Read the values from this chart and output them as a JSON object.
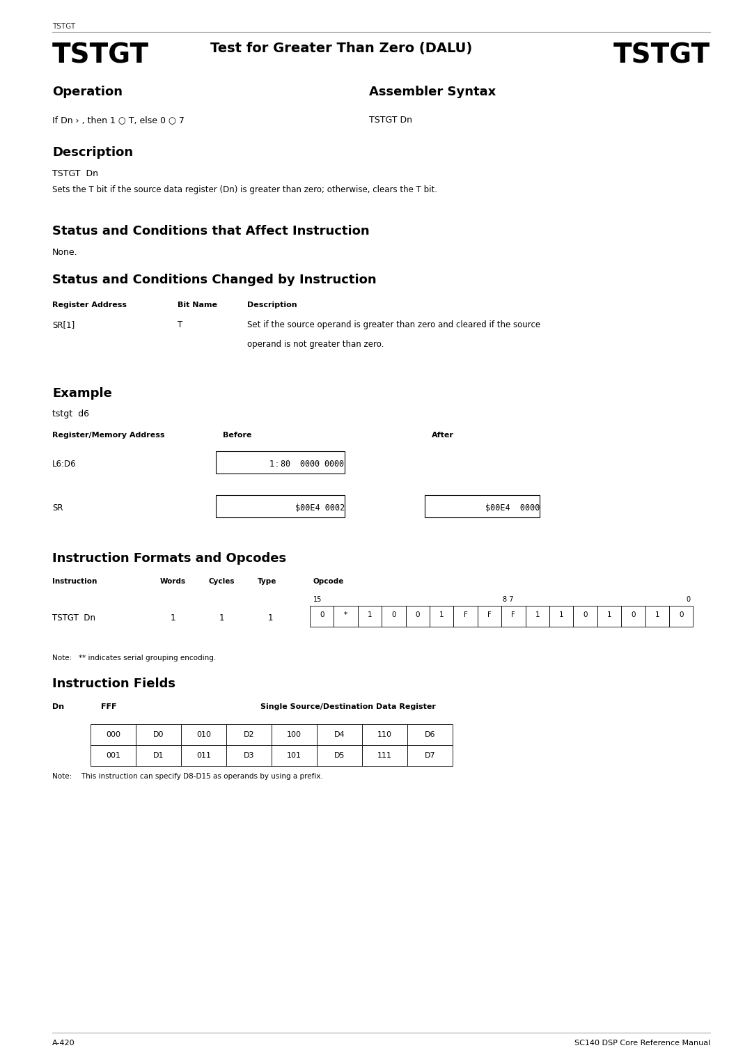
{
  "page_header": "TSTGT",
  "title_left": "TSTGT",
  "title_center": "Test for Greater Than Zero (DALU)",
  "title_right": "TSTGT",
  "section_operation": "Operation",
  "section_assembler": "Assembler Syntax",
  "operation_text": "If Dn › , then 1 ○ T, else 0 ○ 7",
  "assembler_text": "TSTGT Dn",
  "section_description": "Description",
  "desc_syntax": "TSTGT  Dn",
  "desc_body": "Sets the T bit if the source data register (Dn) is greater than zero; otherwise, clears the T bit.",
  "section_status_affect": "Status and Conditions that Affect Instruction",
  "status_affect_text": "None.",
  "section_status_changed": "Status and Conditions Changed by Instruction",
  "table_headers": [
    "Register Address",
    "Bit Name",
    "Description"
  ],
  "table_row": [
    "SR[1]",
    "T",
    "Set if the source operand is greater than zero and cleared if the source\noperand is not greater than zero."
  ],
  "section_example": "Example",
  "example_code": "tstgt  d6",
  "example_col_headers": [
    "Register/Memory Address",
    "Before",
    "After"
  ],
  "example_rows": [
    [
      "L6:D6",
      "$1:$80  0000 0000",
      ""
    ],
    [
      "SR",
      "$00E4 0002",
      "$00E4  0000"
    ]
  ],
  "section_formats": "Instruction Formats and Opcodes",
  "formats_col_headers": [
    "Instruction",
    "Words",
    "Cycles",
    "Type",
    "Opcode"
  ],
  "formats_row": [
    "TSTGT  Dn",
    "1",
    "1",
    "1"
  ],
  "opcode_bits_top": [
    "15",
    "8 7",
    "0"
  ],
  "opcode_cells": [
    "0",
    "*",
    "1",
    "0",
    "0",
    "1",
    "F",
    "F",
    "F",
    "1",
    "1",
    "0",
    "1",
    "0",
    "1",
    "0"
  ],
  "note_formats": "Note:   ** indicates serial grouping encoding.",
  "section_fields": "Instruction Fields",
  "fields_dn_label": "Dn",
  "fields_fff_label": "FFF",
  "fields_title": "Single Source/Destination Data Register",
  "fields_table": [
    [
      "000",
      "D0",
      "010",
      "D2",
      "100",
      "D4",
      "110",
      "D6"
    ],
    [
      "001",
      "D1",
      "011",
      "D3",
      "101",
      "D5",
      "111",
      "D7"
    ]
  ],
  "fields_note": "Note:  This instruction can specify D8-D15 as operands by using a prefix.",
  "footer_left": "A-420",
  "footer_right": "SC140 DSP Core Reference Manual",
  "bg_color": "#ffffff",
  "text_color": "#000000",
  "line_color": "#cccccc"
}
